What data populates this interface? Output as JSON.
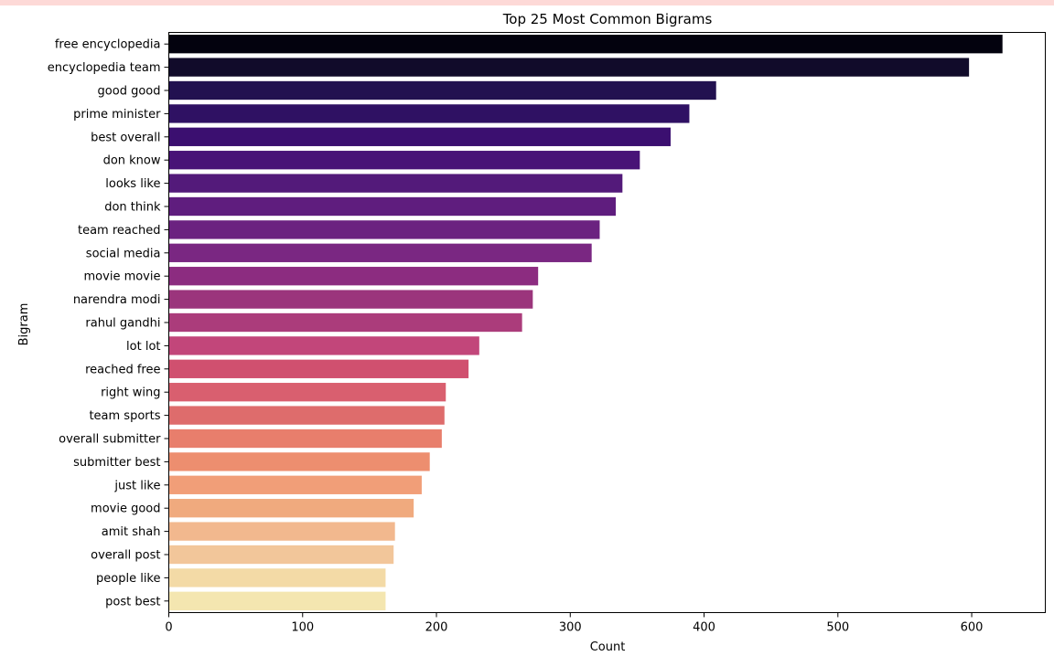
{
  "chart_data": {
    "type": "bar",
    "orientation": "horizontal",
    "title": "Top 25 Most Common Bigrams",
    "xlabel": "Count",
    "ylabel": "Bigram",
    "xlim": [
      0,
      655
    ],
    "xticks": [
      0,
      100,
      200,
      300,
      400,
      500,
      600
    ],
    "grid": false,
    "palette": "magma",
    "categories": [
      "free encyclopedia",
      "encyclopedia team",
      "good good",
      "prime minister",
      "best overall",
      "don know",
      "looks like",
      "don think",
      "team reached",
      "social media",
      "movie movie",
      "narendra modi",
      "rahul gandhi",
      "lot lot",
      "reached free",
      "right wing",
      "team sports",
      "overall submitter",
      "submitter best",
      "just like",
      "movie good",
      "amit shah",
      "overall post",
      "people like",
      "post best"
    ],
    "values": [
      623,
      598,
      409,
      389,
      375,
      352,
      339,
      334,
      322,
      316,
      276,
      272,
      264,
      232,
      224,
      207,
      206,
      204,
      195,
      189,
      183,
      169,
      168,
      162,
      162
    ],
    "colors": [
      "#03020e",
      "#110b2a",
      "#221150",
      "#2f1163",
      "#3b0f70",
      "#481377",
      "#531a7a",
      "#5f1d7e",
      "#6b2280",
      "#7a2782",
      "#8c2c80",
      "#9b357c",
      "#ab3c7b",
      "#c2467a",
      "#d0506f",
      "#d95f6f",
      "#de6c6c",
      "#e87e6c",
      "#ed8e6f",
      "#f19e78",
      "#f0aa7e",
      "#f2b88e",
      "#f2c69a",
      "#f3daa6",
      "#f4e6b0"
    ]
  }
}
